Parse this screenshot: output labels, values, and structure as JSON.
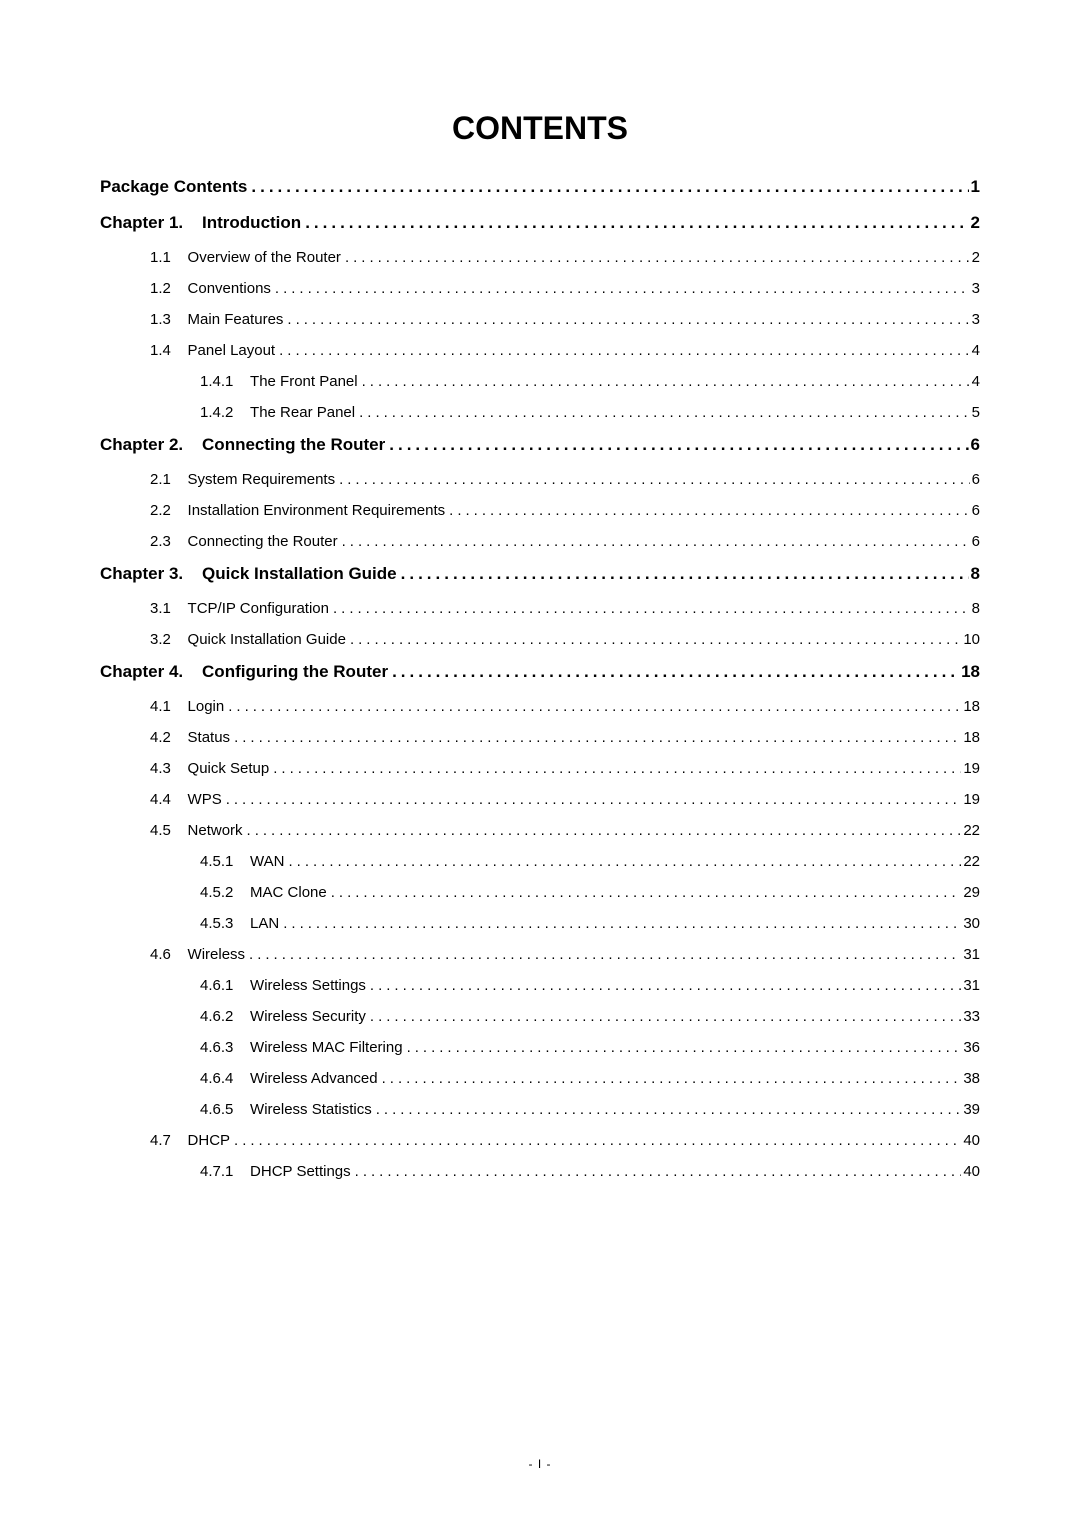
{
  "title": "CONTENTS",
  "footer": "- I -",
  "leader_char": ".",
  "entries": [
    {
      "level": 0,
      "num": "",
      "label": "Package Contents",
      "page": "1"
    },
    {
      "level": 0,
      "num": "Chapter 1.",
      "label": "Introduction",
      "page": "2"
    },
    {
      "level": 1,
      "num": "1.1",
      "label": "Overview of the Router",
      "page": "2"
    },
    {
      "level": 1,
      "num": "1.2",
      "label": "Conventions",
      "page": "3"
    },
    {
      "level": 1,
      "num": "1.3",
      "label": "Main Features",
      "page": "3"
    },
    {
      "level": 1,
      "num": "1.4",
      "label": "Panel Layout",
      "page": "4"
    },
    {
      "level": 2,
      "num": "1.4.1",
      "label": "The Front Panel",
      "page": "4"
    },
    {
      "level": 2,
      "num": "1.4.2",
      "label": "The Rear Panel",
      "page": "5"
    },
    {
      "level": 0,
      "num": "Chapter 2.",
      "label": "Connecting the Router",
      "page": "6"
    },
    {
      "level": 1,
      "num": "2.1",
      "label": "System Requirements",
      "page": "6"
    },
    {
      "level": 1,
      "num": "2.2",
      "label": "Installation Environment Requirements",
      "page": "6"
    },
    {
      "level": 1,
      "num": "2.3",
      "label": "Connecting the Router",
      "page": "6"
    },
    {
      "level": 0,
      "num": "Chapter 3.",
      "label": "Quick Installation Guide",
      "page": "8"
    },
    {
      "level": 1,
      "num": "3.1",
      "label": "TCP/IP Configuration",
      "page": "8"
    },
    {
      "level": 1,
      "num": "3.2",
      "label": "Quick Installation Guide",
      "page": "10"
    },
    {
      "level": 0,
      "num": "Chapter 4.",
      "label": "Configuring the Router",
      "page": "18"
    },
    {
      "level": 1,
      "num": "4.1",
      "label": "Login",
      "page": "18"
    },
    {
      "level": 1,
      "num": "4.2",
      "label": "Status",
      "page": "18"
    },
    {
      "level": 1,
      "num": "4.3",
      "label": "Quick Setup",
      "page": "19"
    },
    {
      "level": 1,
      "num": "4.4",
      "label": "WPS",
      "page": "19"
    },
    {
      "level": 1,
      "num": "4.5",
      "label": "Network",
      "page": "22"
    },
    {
      "level": 2,
      "num": "4.5.1",
      "label": "WAN",
      "page": "22"
    },
    {
      "level": 2,
      "num": "4.5.2",
      "label": "MAC Clone",
      "page": "29"
    },
    {
      "level": 2,
      "num": "4.5.3",
      "label": "LAN",
      "page": "30"
    },
    {
      "level": 1,
      "num": "4.6",
      "label": "Wireless",
      "page": "31"
    },
    {
      "level": 2,
      "num": "4.6.1",
      "label": "Wireless Settings",
      "page": "31"
    },
    {
      "level": 2,
      "num": "4.6.2",
      "label": "Wireless Security",
      "page": "33"
    },
    {
      "level": 2,
      "num": "4.6.3",
      "label": "Wireless MAC Filtering",
      "page": "36"
    },
    {
      "level": 2,
      "num": "4.6.4",
      "label": "Wireless Advanced",
      "page": "38"
    },
    {
      "level": 2,
      "num": "4.6.5",
      "label": "Wireless Statistics",
      "page": "39"
    },
    {
      "level": 1,
      "num": "4.7",
      "label": "DHCP",
      "page": "40"
    },
    {
      "level": 2,
      "num": "4.7.1",
      "label": "DHCP Settings",
      "page": "40"
    }
  ]
}
